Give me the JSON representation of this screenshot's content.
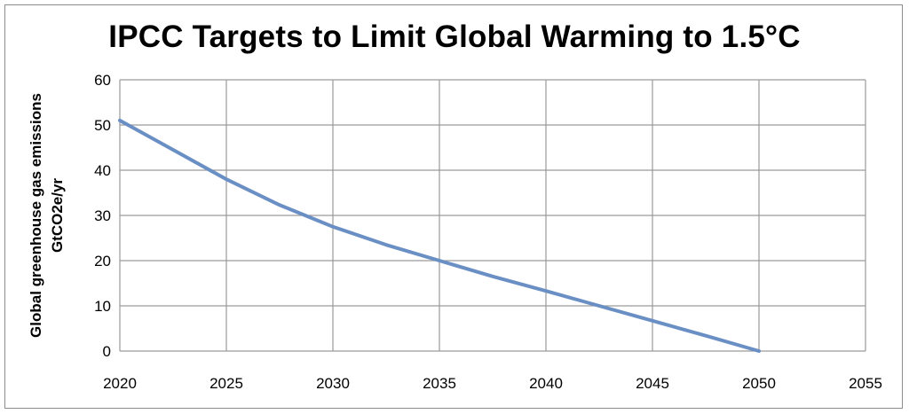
{
  "chart_data": {
    "type": "line",
    "title": "IPCC Targets to Limit Global Warming to 1.5°C",
    "xlabel": "",
    "ylabel_lines": [
      "Global greenhouse gas emissions",
      "GtCO2e/yr"
    ],
    "xlim": [
      2020,
      2055
    ],
    "ylim": [
      0,
      60
    ],
    "x_ticks": [
      2020,
      2025,
      2030,
      2035,
      2040,
      2045,
      2050,
      2055
    ],
    "y_ticks": [
      0,
      10,
      20,
      30,
      40,
      50,
      60
    ],
    "grid": true,
    "legend": "none",
    "series": [
      {
        "color": "#6a8fc4",
        "x": [
          2020,
          2022.5,
          2025,
          2027.5,
          2030,
          2032.5,
          2035,
          2037.5,
          2040,
          2042.5,
          2045,
          2047.5,
          2050
        ],
        "y": [
          51,
          44.5,
          38,
          32.3,
          27.5,
          23.5,
          20,
          16.5,
          13.3,
          10,
          6.7,
          3.4,
          0
        ]
      }
    ]
  }
}
